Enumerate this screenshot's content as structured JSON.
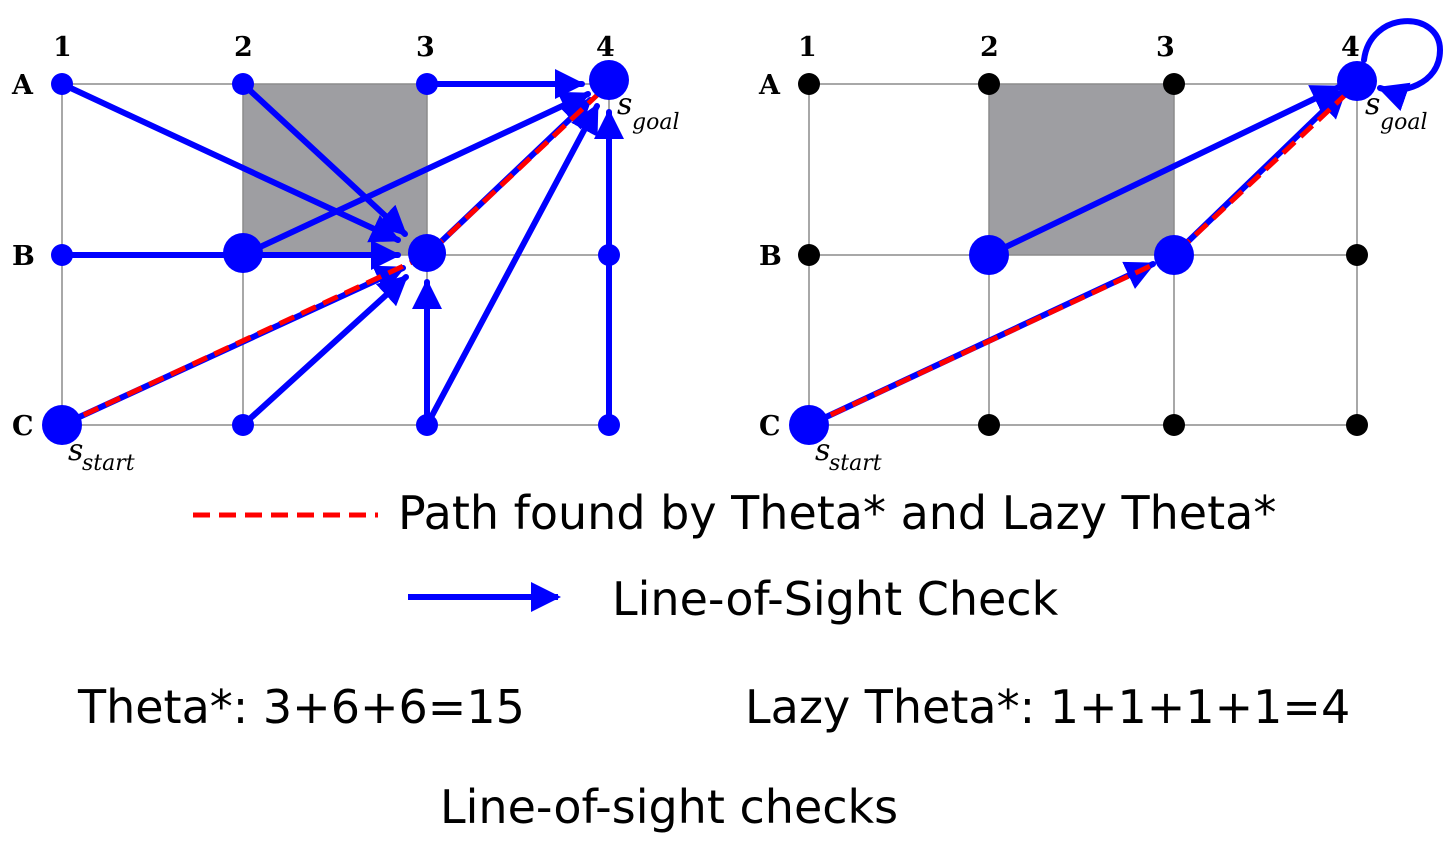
{
  "left_grid": {
    "columns": [
      "1",
      "2",
      "3",
      "4"
    ],
    "rows": [
      "A",
      "B",
      "C"
    ],
    "start_label": {
      "s": "s",
      "sub": "start"
    },
    "goal_label": {
      "s": "s",
      "sub": "goal"
    }
  },
  "right_grid": {
    "columns": [
      "1",
      "2",
      "3",
      "4"
    ],
    "rows": [
      "A",
      "B",
      "C"
    ],
    "start_label": {
      "s": "s",
      "sub": "start"
    },
    "goal_label": {
      "s": "s",
      "sub": "goal"
    }
  },
  "legend": {
    "path_label": "Path found by Theta* and Lazy Theta*",
    "los_label": "Line-of-Sight Check"
  },
  "counts": {
    "theta": "Theta*: 3+6+6=15",
    "lazy_theta": "Lazy Theta*: 1+1+1+1=4"
  },
  "footer": "Line-of-sight checks",
  "colors": {
    "los": "#0000ff",
    "path": "#ff0000",
    "blocked": "#9e9ea2",
    "grid_line": "#8c8c8c",
    "node_left": "#0000ff",
    "node_right_inactive": "#000000"
  }
}
